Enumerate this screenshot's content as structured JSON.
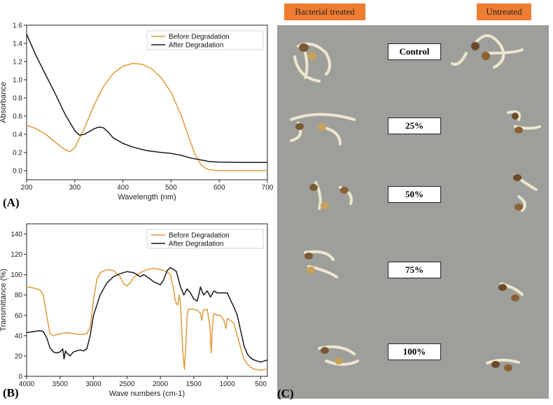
{
  "panel_labels": {
    "a": "(A)",
    "b": "(B)",
    "c": "(C)"
  },
  "colors": {
    "before": "#E09A3B",
    "after": "#1a1a1a",
    "tag": "#ee7d32",
    "paper": "#9e9f9b"
  },
  "chart_data": [
    {
      "type": "line",
      "xlabel": "Wavelength (nm)",
      "ylabel": "Absorbance",
      "xlim": [
        200,
        700
      ],
      "ylim": [
        -0.1,
        1.6
      ],
      "xticks": [
        "200",
        "300",
        "400",
        "500",
        "600",
        "700"
      ],
      "yticks": [
        "0.0",
        "0.2",
        "0.4",
        "0.6",
        "0.8",
        "1.0",
        "1.2",
        "1.4",
        "1.6"
      ],
      "legend_position": "top-right",
      "series": [
        {
          "name": "Before Degradation",
          "color": "#E09A3B",
          "x": [
            200,
            220,
            240,
            260,
            280,
            290,
            300,
            320,
            340,
            360,
            380,
            400,
            420,
            440,
            460,
            480,
            500,
            520,
            540,
            550,
            560,
            570,
            580,
            600,
            650,
            700
          ],
          "y": [
            0.5,
            0.46,
            0.4,
            0.31,
            0.23,
            0.21,
            0.25,
            0.47,
            0.72,
            0.93,
            1.07,
            1.15,
            1.18,
            1.17,
            1.12,
            1.02,
            0.86,
            0.62,
            0.32,
            0.18,
            0.08,
            0.03,
            0.01,
            0.0,
            0.0,
            0.0
          ]
        },
        {
          "name": "After Degradation",
          "color": "#1a1a1a",
          "x": [
            200,
            210,
            220,
            240,
            260,
            280,
            300,
            310,
            320,
            340,
            350,
            360,
            370,
            380,
            400,
            420,
            450,
            480,
            500,
            520,
            540,
            560,
            580,
            600,
            650,
            700
          ],
          "y": [
            1.5,
            1.38,
            1.26,
            1.05,
            0.84,
            0.62,
            0.44,
            0.39,
            0.4,
            0.46,
            0.48,
            0.47,
            0.42,
            0.36,
            0.3,
            0.26,
            0.22,
            0.2,
            0.19,
            0.17,
            0.14,
            0.12,
            0.1,
            0.095,
            0.09,
            0.09
          ]
        }
      ]
    },
    {
      "type": "line",
      "xlabel": "Wave numbers (cm-1)",
      "ylabel": "Transmittance (%)",
      "xlim": [
        4000,
        400
      ],
      "ylim": [
        0,
        150
      ],
      "xticks": [
        "4000",
        "3500",
        "3000",
        "2500",
        "2000",
        "1500",
        "1000",
        "500"
      ],
      "yticks": [
        "0",
        "20",
        "40",
        "60",
        "80",
        "100",
        "120",
        "140"
      ],
      "legend_position": "top-right",
      "series": [
        {
          "name": "Before Degradation",
          "color": "#E09A3B",
          "x": [
            4000,
            3900,
            3800,
            3750,
            3700,
            3650,
            3600,
            3500,
            3400,
            3300,
            3200,
            3100,
            3050,
            3000,
            2950,
            2900,
            2800,
            2700,
            2600,
            2550,
            2500,
            2450,
            2400,
            2300,
            2200,
            2100,
            2000,
            1900,
            1850,
            1800,
            1780,
            1760,
            1740,
            1720,
            1700,
            1680,
            1660,
            1640,
            1620,
            1600,
            1580,
            1550,
            1500,
            1450,
            1400,
            1380,
            1360,
            1300,
            1260,
            1240,
            1220,
            1200,
            1150,
            1100,
            1050,
            1020,
            1000,
            950,
            900,
            850,
            800,
            750,
            700,
            650,
            600,
            500,
            400
          ],
          "y": [
            88,
            87,
            85,
            80,
            60,
            42,
            40,
            42,
            43,
            42,
            41,
            42,
            48,
            75,
            95,
            102,
            105,
            104,
            98,
            91,
            89,
            92,
            97,
            102,
            105,
            106,
            105,
            103,
            100,
            85,
            75,
            72,
            70,
            80,
            72,
            45,
            20,
            7,
            30,
            60,
            66,
            66,
            66,
            65,
            62,
            55,
            65,
            66,
            50,
            23,
            50,
            62,
            60,
            60,
            55,
            47,
            57,
            55,
            52,
            40,
            28,
            17,
            12,
            9,
            7,
            6,
            7
          ]
        },
        {
          "name": "After Degradation",
          "color": "#1a1a1a",
          "x": [
            4000,
            3900,
            3800,
            3750,
            3700,
            3650,
            3600,
            3550,
            3500,
            3460,
            3440,
            3420,
            3400,
            3350,
            3300,
            3200,
            3150,
            3100,
            3050,
            3000,
            2900,
            2800,
            2700,
            2600,
            2500,
            2400,
            2350,
            2300,
            2250,
            2200,
            2100,
            2000,
            1950,
            1900,
            1850,
            1800,
            1760,
            1700,
            1650,
            1600,
            1550,
            1500,
            1450,
            1420,
            1400,
            1380,
            1350,
            1300,
            1250,
            1200,
            1150,
            1100,
            1050,
            1000,
            950,
            900,
            850,
            800,
            750,
            700,
            650,
            600,
            550,
            500,
            450,
            400
          ],
          "y": [
            43,
            44,
            45,
            44,
            38,
            28,
            24,
            23,
            24,
            27,
            17,
            25,
            23,
            20,
            24,
            26,
            25,
            27,
            40,
            60,
            80,
            92,
            98,
            101,
            103,
            102,
            100,
            98,
            100,
            98,
            93,
            90,
            95,
            104,
            107,
            105,
            103,
            88,
            80,
            86,
            82,
            76,
            74,
            82,
            88,
            84,
            80,
            84,
            78,
            84,
            82,
            82,
            82,
            82,
            75,
            68,
            60,
            45,
            30,
            22,
            18,
            16,
            15,
            14,
            15,
            16
          ]
        }
      ]
    }
  ],
  "photo": {
    "header_left": "Bacterial treated",
    "header_right": "Untreated",
    "concentrations": [
      "Control",
      "25%",
      "50%",
      "75%",
      "100%"
    ]
  }
}
